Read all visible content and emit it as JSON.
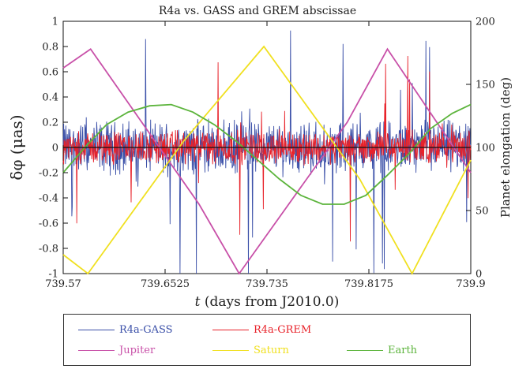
{
  "chart_data": {
    "type": "line",
    "title": "R4a vs. GASS and GREM abscissae",
    "xlabel_italic": "t",
    "xlabel_rest": " (days from J2010.0)",
    "ylabel_left": "δφ (μas)",
    "ylabel_right": "Planet elongation (deg)",
    "xlim": [
      739.57,
      739.9
    ],
    "ylim_left": [
      -1,
      1
    ],
    "ylim_right": [
      0,
      200
    ],
    "x_ticks": [
      "739.57",
      "739.6525",
      "739.735",
      "739.8175",
      "739.9"
    ],
    "y_ticks_left": [
      "1",
      "0.8",
      "0.6",
      "0.4",
      "0.2",
      "0",
      "-0.2",
      "-0.4",
      "-0.6",
      "-0.8",
      "-1"
    ],
    "y_ticks_right": [
      "200",
      "150",
      "100",
      "50",
      "0"
    ],
    "series": [
      {
        "name": "R4a-GASS",
        "axis": "left",
        "color": "#3a4fa8",
        "kind": "noise",
        "amplitude": 0.16
      },
      {
        "name": "R4a-GREM",
        "axis": "left",
        "color": "#e8222a",
        "kind": "noise",
        "amplitude": 0.1
      },
      {
        "name": "Jupiter",
        "axis": "right",
        "color": "#c850a8",
        "x": [
          739.57,
          739.5922,
          739.68,
          739.7125,
          739.8,
          739.8325,
          739.9
        ],
        "y": [
          163,
          178,
          55,
          0,
          120,
          178,
          80
        ]
      },
      {
        "name": "Saturn",
        "axis": "right",
        "color": "#f0e020",
        "x": [
          739.57,
          739.59,
          739.6675,
          739.7325,
          739.81,
          739.8525,
          739.9
        ],
        "y": [
          15,
          0,
          105,
          180,
          75,
          0,
          90
        ]
      },
      {
        "name": "Earth",
        "axis": "right",
        "color": "#5cb43c",
        "x": [
          739.57,
          739.5875,
          739.605,
          739.6225,
          739.64,
          739.6575,
          739.675,
          739.6925,
          739.71,
          739.7275,
          739.745,
          739.7625,
          739.78,
          739.7975,
          739.815,
          739.8325,
          739.85,
          739.8675,
          739.885,
          739.9
        ],
        "y": [
          80,
          100,
          118,
          128,
          133,
          134,
          128,
          118,
          105,
          90,
          75,
          62,
          55,
          55,
          62,
          78,
          95,
          115,
          127,
          134
        ]
      }
    ],
    "legend": {
      "placement": "bottom",
      "entries": [
        {
          "label": "R4a-GASS",
          "color": "#3a4fa8"
        },
        {
          "label": "R4a-GREM",
          "color": "#e8222a"
        },
        {
          "label": "Jupiter",
          "color": "#c850a8"
        },
        {
          "label": "Saturn",
          "color": "#f0e020"
        },
        {
          "label": "Earth",
          "color": "#5cb43c"
        }
      ]
    }
  }
}
